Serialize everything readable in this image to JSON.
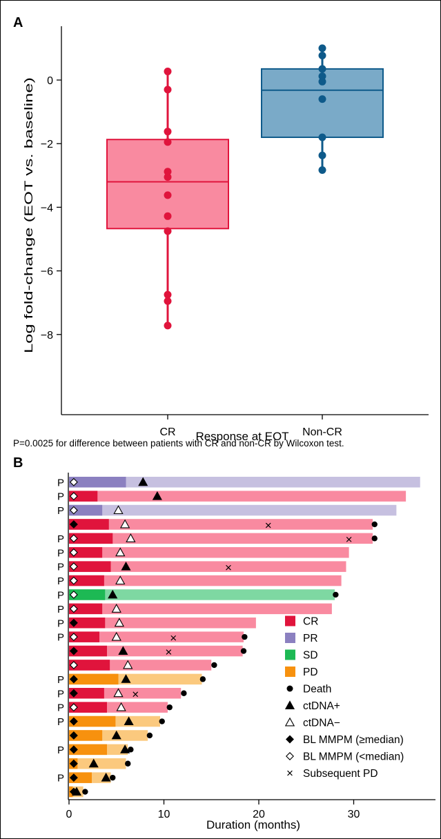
{
  "panels": {
    "a_letter": "A",
    "b_letter": "B"
  },
  "chart_data": [
    {
      "type": "box",
      "panel": "A",
      "ylabel": "Log fold-change (EOT vs. baseline)",
      "xlabel": "Response at EOT",
      "ylim": [
        -8.3,
        1.4
      ],
      "yticks": [
        0,
        -2,
        -4,
        -6,
        -8
      ],
      "ytick_labels": [
        "0",
        "−2",
        "−4",
        "−6",
        "−8"
      ],
      "groups": [
        {
          "name": "CR",
          "color": "#E0143C",
          "fill": "#F98AA0",
          "q1": -4.67,
          "median": -3.2,
          "q3": -1.87,
          "whisker_low": -7.72,
          "whisker_high": 0.27,
          "points": [
            0.27,
            -0.3,
            -1.62,
            -1.95,
            -2.88,
            -3.05,
            -3.62,
            -4.28,
            -4.75,
            -6.75,
            -6.95,
            -7.72
          ]
        },
        {
          "name": "Non-CR",
          "color": "#0E5A8A",
          "fill": "#7AAAC8",
          "q1": -1.8,
          "median": -0.32,
          "q3": 0.35,
          "whisker_low": -2.83,
          "whisker_high": 1.0,
          "points": [
            1.0,
            0.77,
            0.35,
            0.12,
            -0.05,
            -0.6,
            -1.8,
            -2.37,
            -2.83
          ]
        }
      ],
      "note": "P=0.0025 for difference between patients with CR and non-CR by Wilcoxon test."
    },
    {
      "type": "swimmer",
      "panel": "B",
      "xlabel": "Duration (months)",
      "xlim": [
        0,
        38
      ],
      "xticks": [
        0,
        10,
        20,
        30
      ],
      "colors": {
        "CR": {
          "strong": "#E0143C",
          "light": "#F98AA0"
        },
        "PR": {
          "strong": "#8B80C0",
          "light": "#C6C0E0"
        },
        "SD": {
          "strong": "#1DB954",
          "light": "#7ED8A2"
        },
        "PD": {
          "strong": "#F7910E",
          "light": "#FBC97E"
        }
      },
      "legend": [
        {
          "kind": "swatch",
          "color": "#E0143C",
          "label": "CR"
        },
        {
          "kind": "swatch",
          "color": "#8B80C0",
          "label": "PR"
        },
        {
          "kind": "swatch",
          "color": "#1DB954",
          "label": "SD"
        },
        {
          "kind": "swatch",
          "color": "#F7910E",
          "label": "PD"
        },
        {
          "kind": "death",
          "label": "Death"
        },
        {
          "kind": "ctdna_pos",
          "label": "ctDNA+"
        },
        {
          "kind": "ctdna_neg",
          "label": "ctDNA−"
        },
        {
          "kind": "bl_high",
          "label": "BL MMPM (≥median)"
        },
        {
          "kind": "bl_low",
          "label": "BL MMPM (<median)"
        },
        {
          "kind": "subseq_pd",
          "label": "Subsequent PD"
        }
      ],
      "rows": [
        {
          "p": "P",
          "resp": "PR",
          "strong_end": 6.0,
          "end": 37.0,
          "bl": "low",
          "ctdna": "pos",
          "ctdna_x": 7.8,
          "death": null,
          "subpd": null
        },
        {
          "p": "P",
          "resp": "CR",
          "strong_end": 3.0,
          "end": 35.5,
          "bl": "low",
          "ctdna": "pos",
          "ctdna_x": 9.3,
          "death": null,
          "subpd": null
        },
        {
          "p": "P",
          "resp": "PR",
          "strong_end": 3.5,
          "end": 34.5,
          "bl": "low",
          "ctdna": "neg",
          "ctdna_x": 5.2,
          "death": null,
          "subpd": null
        },
        {
          "p": "",
          "resp": "CR",
          "strong_end": 4.2,
          "end": 32.0,
          "bl": "high",
          "ctdna": "neg",
          "ctdna_x": 5.9,
          "death": 32.2,
          "subpd": 21.0
        },
        {
          "p": "P",
          "resp": "CR",
          "strong_end": 4.6,
          "end": 32.0,
          "bl": "low",
          "ctdna": "neg",
          "ctdna_x": 6.5,
          "death": 32.2,
          "subpd": 29.5
        },
        {
          "p": "P",
          "resp": "CR",
          "strong_end": 3.5,
          "end": 29.5,
          "bl": "low",
          "ctdna": "neg",
          "ctdna_x": 5.4,
          "death": null,
          "subpd": null
        },
        {
          "p": "P",
          "resp": "CR",
          "strong_end": 4.4,
          "end": 29.2,
          "bl": "low",
          "ctdna": "pos",
          "ctdna_x": 6.0,
          "death": null,
          "subpd": 16.8
        },
        {
          "p": "P",
          "resp": "CR",
          "strong_end": 3.7,
          "end": 28.7,
          "bl": "low",
          "ctdna": "neg",
          "ctdna_x": 5.4,
          "death": null,
          "subpd": null
        },
        {
          "p": "P",
          "resp": "SD",
          "strong_end": 3.8,
          "end": 28.0,
          "bl": "low",
          "ctdna": "pos",
          "ctdna_x": 4.6,
          "death": 28.1,
          "subpd": null
        },
        {
          "p": "P",
          "resp": "CR",
          "strong_end": 3.5,
          "end": 27.7,
          "bl": "low",
          "ctdna": "neg",
          "ctdna_x": 5.0,
          "death": null,
          "subpd": null
        },
        {
          "p": "P",
          "resp": "CR",
          "strong_end": 3.8,
          "end": 19.7,
          "bl": "high",
          "ctdna": "neg",
          "ctdna_x": 5.3,
          "death": null,
          "subpd": null
        },
        {
          "p": "P",
          "resp": "CR",
          "strong_end": 3.2,
          "end": 18.4,
          "bl": "low",
          "ctdna": "neg",
          "ctdna_x": 5.0,
          "death": 18.5,
          "subpd": 11.0
        },
        {
          "p": "",
          "resp": "CR",
          "strong_end": 4.0,
          "end": 18.3,
          "bl": "high",
          "ctdna": "pos",
          "ctdna_x": 5.7,
          "death": 18.4,
          "subpd": 10.5
        },
        {
          "p": "",
          "resp": "CR",
          "strong_end": 4.3,
          "end": 15.0,
          "bl": "low",
          "ctdna": "neg",
          "ctdna_x": 6.2,
          "death": 15.3,
          "subpd": null
        },
        {
          "p": "P",
          "resp": "PD",
          "strong_end": 5.2,
          "end": 14.0,
          "bl": "high",
          "ctdna": "pos",
          "ctdna_x": 6.0,
          "death": 14.1,
          "subpd": null
        },
        {
          "p": "P",
          "resp": "CR",
          "strong_end": 3.7,
          "end": 11.8,
          "bl": "high",
          "ctdna": "neg",
          "ctdna_x": 5.2,
          "death": 12.1,
          "subpd": 7.0
        },
        {
          "p": "P",
          "resp": "CR",
          "strong_end": 4.0,
          "end": 10.4,
          "bl": "low",
          "ctdna": "neg",
          "ctdna_x": 5.5,
          "death": 10.6,
          "subpd": null
        },
        {
          "p": "P",
          "resp": "PD",
          "strong_end": 4.9,
          "end": 9.6,
          "bl": "high",
          "ctdna": "pos",
          "ctdna_x": 6.3,
          "death": 9.8,
          "subpd": null
        },
        {
          "p": "",
          "resp": "PD",
          "strong_end": 3.5,
          "end": 8.3,
          "bl": "high",
          "ctdna": "pos",
          "ctdna_x": 5.0,
          "death": 8.5,
          "subpd": null
        },
        {
          "p": "P",
          "resp": "PD",
          "strong_end": 4.0,
          "end": 6.2,
          "bl": "high",
          "ctdna": "pos",
          "ctdna_x": 5.9,
          "death": 6.5,
          "subpd": null
        },
        {
          "p": "",
          "resp": "PD",
          "strong_end": 0.9,
          "end": 6.0,
          "bl": "high",
          "ctdna": "pos",
          "ctdna_x": 2.6,
          "death": 6.2,
          "subpd": null
        },
        {
          "p": "P",
          "resp": "PD",
          "strong_end": 2.4,
          "end": 4.4,
          "bl": "high",
          "ctdna": "pos",
          "ctdna_x": 3.9,
          "death": 4.6,
          "subpd": null
        },
        {
          "p": "",
          "resp": "PD",
          "strong_end": 0.4,
          "end": 1.5,
          "bl": "high",
          "ctdna": "pos",
          "ctdna_x": 0.8,
          "death": 1.7,
          "subpd": null
        }
      ]
    }
  ]
}
